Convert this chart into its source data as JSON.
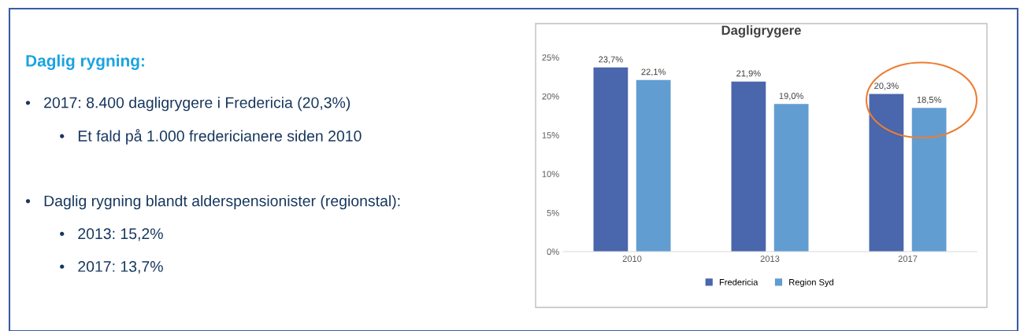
{
  "chart_data": [
    {
      "type": "other",
      "title": "Daglig rygning:",
      "annotations": [
        "•   2017: 8.400 dagligrygere i Fredericia (20,3%)",
        "        •   Et fald på 1.000 fredericianere siden 2010",
        "•   Daglig rygning blandt alderspensionister (regionstal):",
        "        •   2013: 15,2%",
        "        •   2017: 13,7%"
      ]
    },
    {
      "type": "bar",
      "title": "Dagligrygere",
      "categories": [
        "2010",
        "2013",
        "2017"
      ],
      "series": [
        {
          "name": "Fredericia",
          "color": "#4a66ac",
          "values": [
            23.7,
            21.9,
            20.3
          ],
          "value_labels": [
            "23,7%",
            "21,9%",
            "20,3%"
          ]
        },
        {
          "name": "Region Syd",
          "color": "#629dd1",
          "values": [
            22.1,
            19.0,
            18.5
          ],
          "value_labels": [
            "22,1%",
            "19,0%",
            "18,5%"
          ]
        }
      ],
      "ylim": [
        0,
        25
      ],
      "yticks": [
        {
          "value": 0,
          "label": "0%"
        },
        {
          "value": 5,
          "label": "5%"
        },
        {
          "value": 10,
          "label": "10%"
        },
        {
          "value": 15,
          "label": "15%"
        },
        {
          "value": 20,
          "label": "20%"
        },
        {
          "value": 25,
          "label": "25%"
        }
      ],
      "grid": false,
      "legend": "bottom"
    }
  ]
}
